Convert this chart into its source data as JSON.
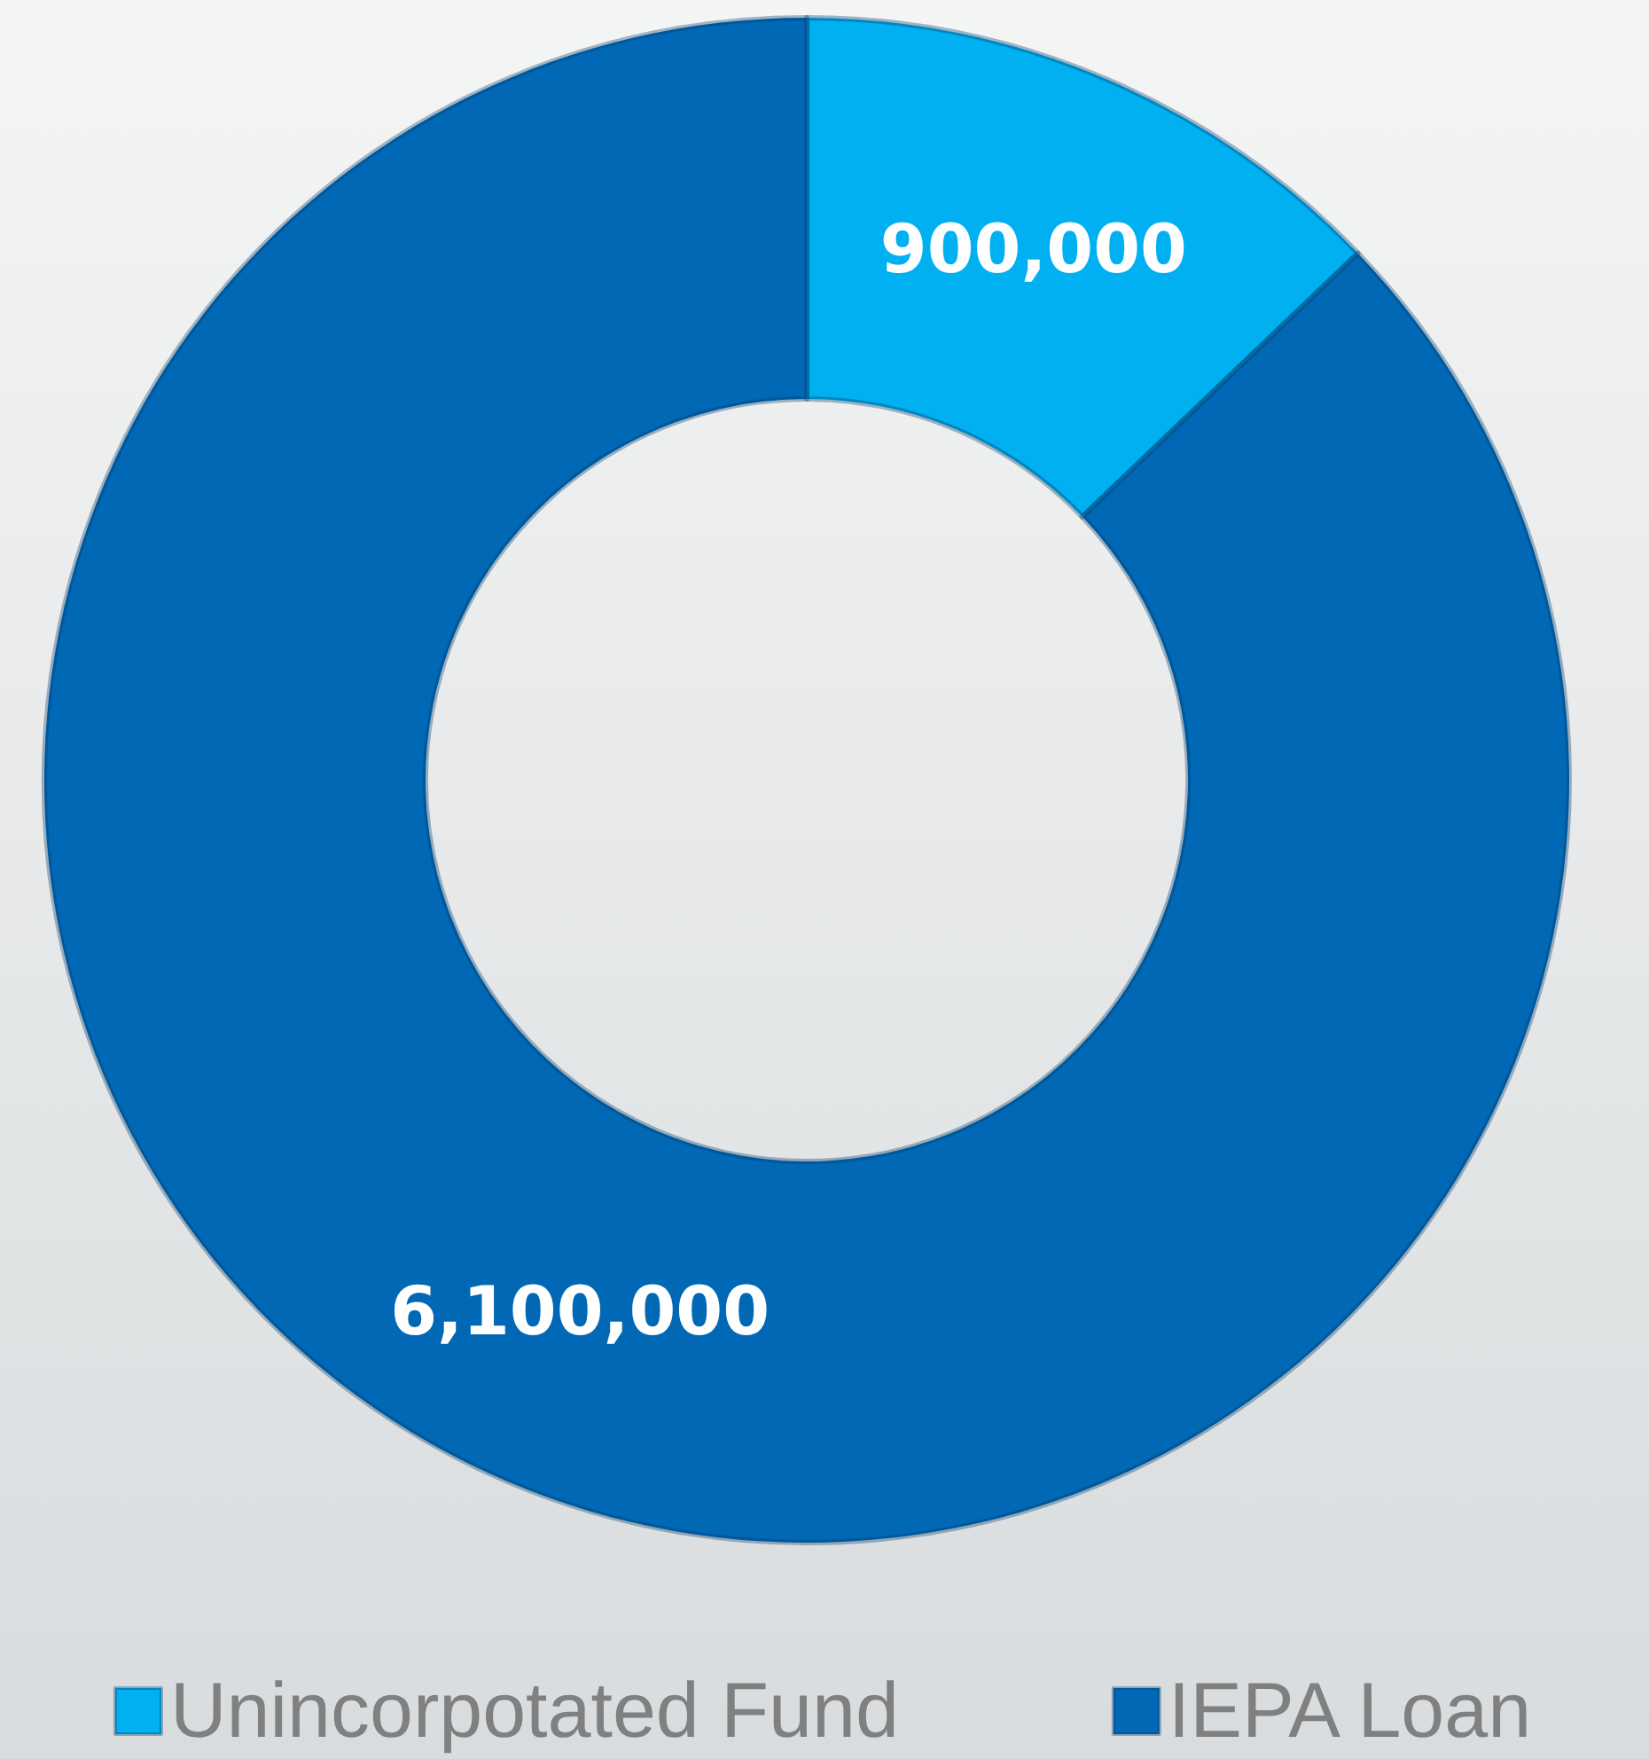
{
  "chart_data": {
    "type": "donut",
    "categories": [
      "Unincorpotated Fund",
      "IEPA Loan"
    ],
    "values": [
      900000,
      6100000
    ],
    "colors": [
      "#00b0f0",
      "#0068b4"
    ],
    "value_labels": [
      "900,000",
      "6,100,000"
    ],
    "legend": "bottom"
  }
}
